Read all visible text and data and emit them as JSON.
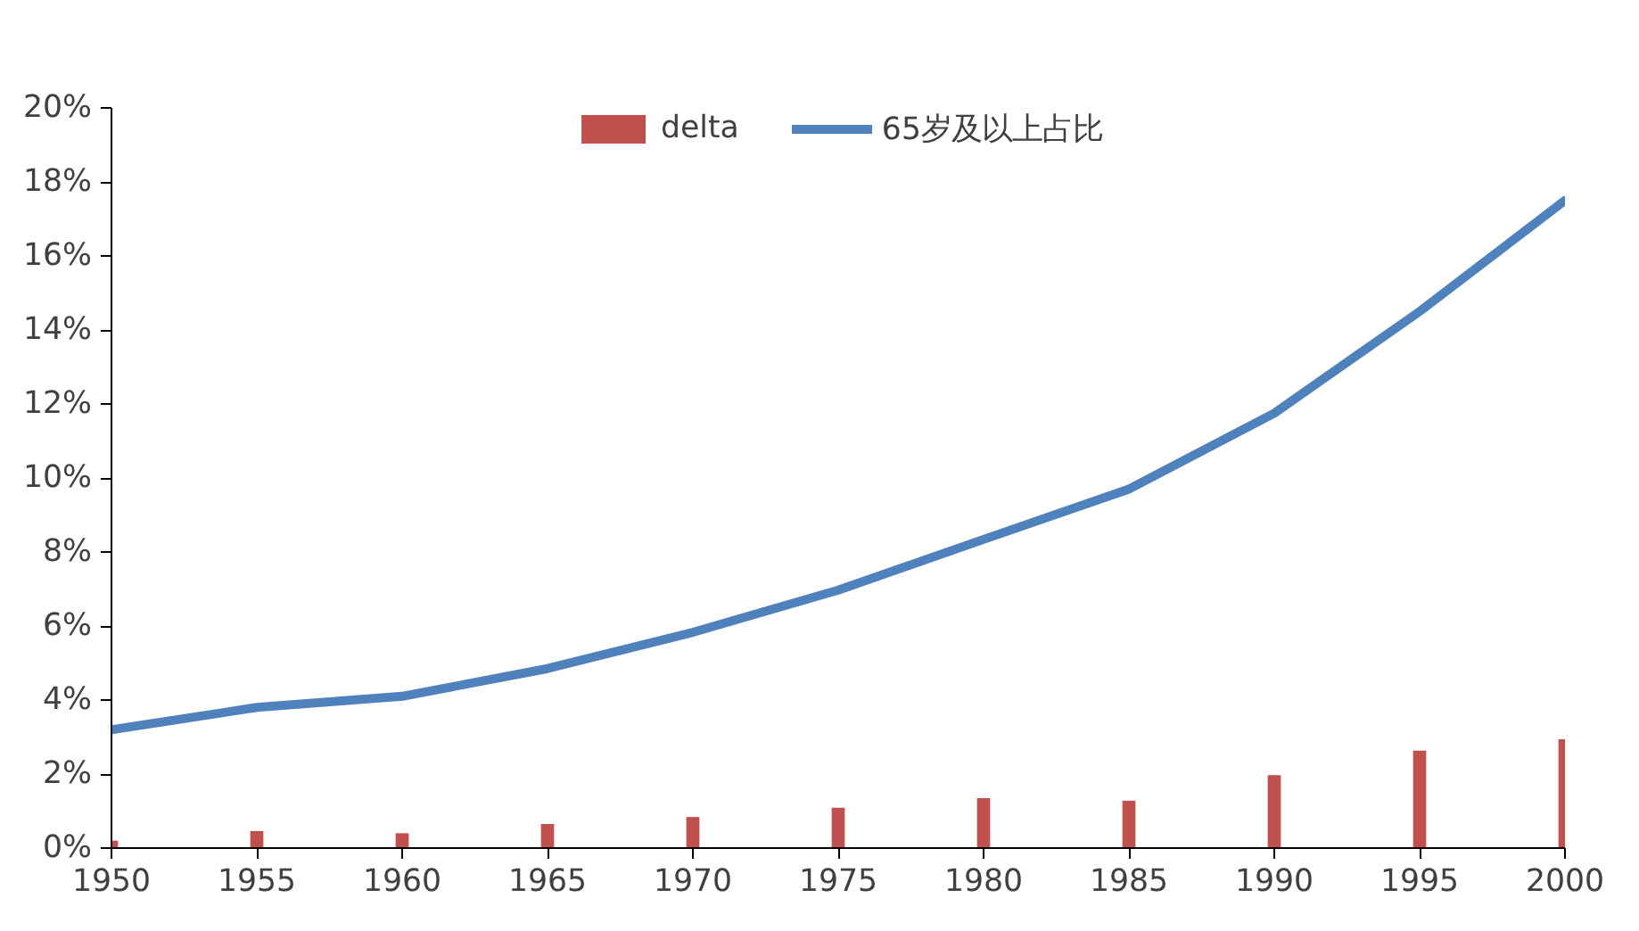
{
  "chart_data": {
    "type": "bar",
    "x": [
      1950,
      1955,
      1960,
      1965,
      1970,
      1975,
      1980,
      1985,
      1990,
      1995,
      2000
    ],
    "series": [
      {
        "name": "delta",
        "color": "#c0504d",
        "values": [
          0.2,
          0.46,
          0.4,
          0.65,
          0.84,
          1.09,
          1.35,
          1.28,
          1.97,
          2.63,
          2.94
        ]
      },
      {
        "name": "65岁及以上占比",
        "type": "line",
        "color": "#4f81bd",
        "values": [
          3.2,
          3.8,
          4.1,
          4.85,
          5.83,
          6.97,
          8.34,
          9.7,
          11.75,
          14.5,
          17.5
        ]
      }
    ],
    "xlim": [
      1950,
      2000
    ],
    "xticks": [
      1950,
      1955,
      1960,
      1965,
      1970,
      1975,
      1980,
      1985,
      1990,
      1995,
      2000
    ],
    "ylim": [
      0,
      20
    ],
    "yticks": [
      {
        "value": 0,
        "label": "0%"
      },
      {
        "value": 2,
        "label": "2%"
      },
      {
        "value": 4,
        "label": "4%"
      },
      {
        "value": 6,
        "label": "6%"
      },
      {
        "value": 8,
        "label": "8%"
      },
      {
        "value": 10,
        "label": "10%"
      },
      {
        "value": 12,
        "label": "12%"
      },
      {
        "value": 14,
        "label": "14%"
      },
      {
        "value": 16,
        "label": "16%"
      },
      {
        "value": 18,
        "label": "18%"
      },
      {
        "value": 20,
        "label": "20%"
      }
    ],
    "grid": false,
    "legend": "top",
    "line_style": "solid",
    "marker": "none"
  }
}
